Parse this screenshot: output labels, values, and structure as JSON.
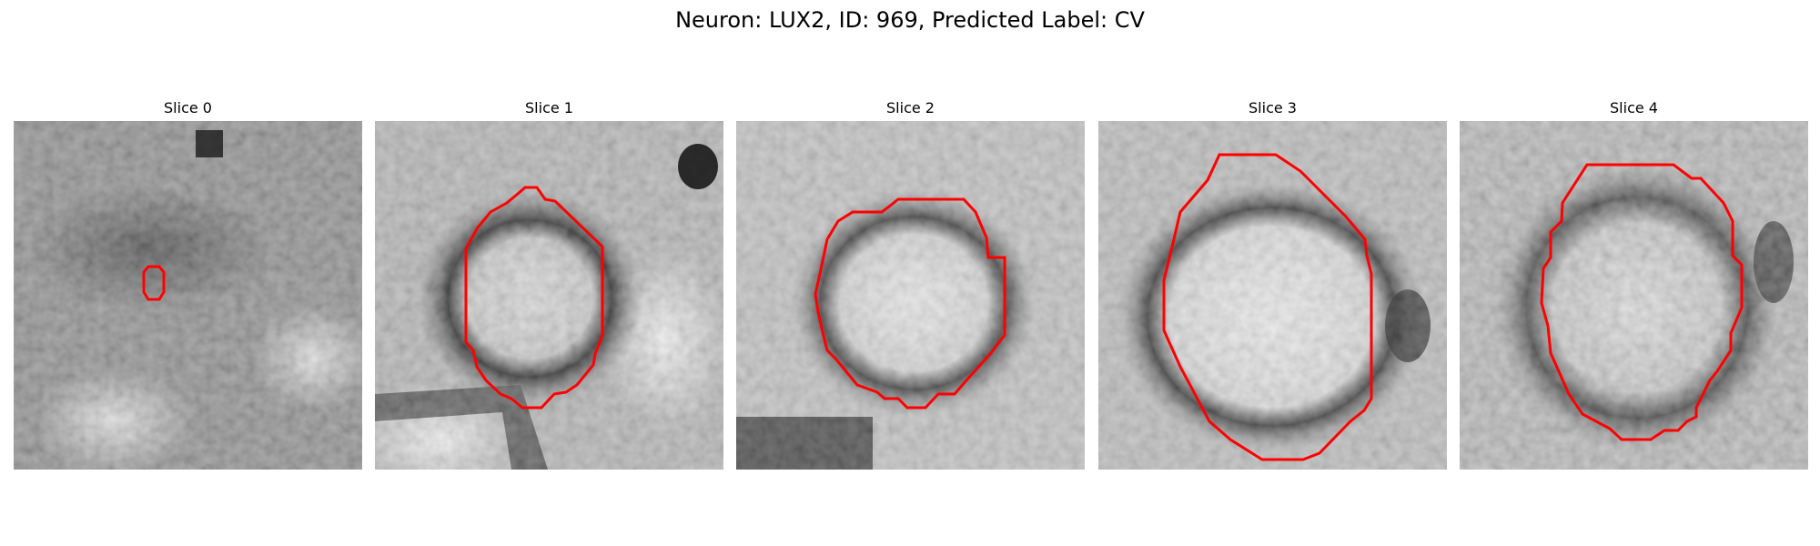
{
  "figure": {
    "title": "Neuron: LUX2, ID: 969, Predicted Label: CV"
  },
  "panels": [
    {
      "title": "Slice 0"
    },
    {
      "title": "Slice 1"
    },
    {
      "title": "Slice 2"
    },
    {
      "title": "Slice 3"
    },
    {
      "title": "Slice 4"
    }
  ],
  "colors": {
    "contour": "#ff0000",
    "background": "#ffffff"
  }
}
